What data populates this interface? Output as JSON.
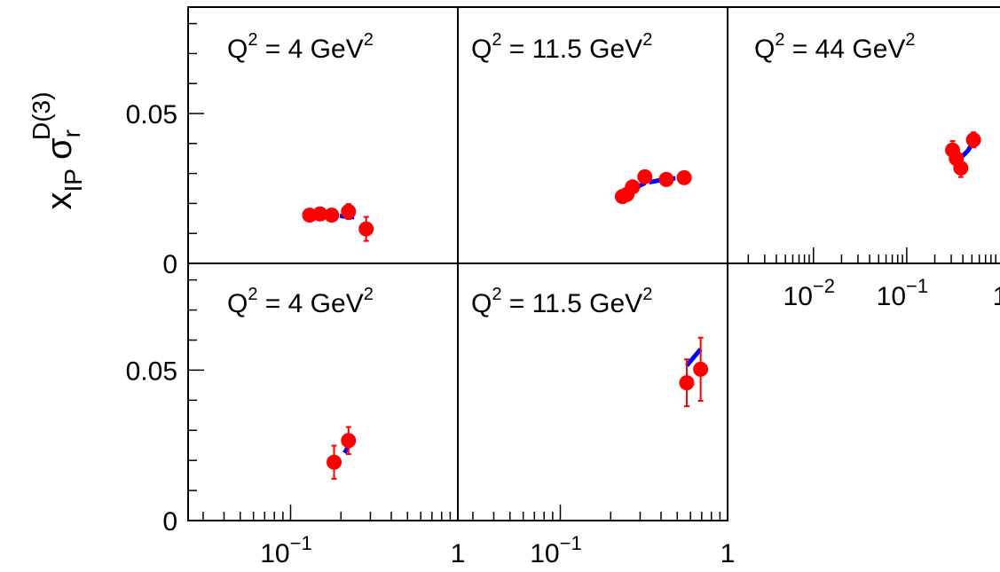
{
  "chart_data": {
    "type": "scatter",
    "ylabel": {
      "main": "x",
      "sub": "IP",
      "sym": "σ",
      "sub2": "r",
      "sup": "D(3)"
    },
    "ylim": [
      0,
      0.0855
    ],
    "y_ticks": [
      {
        "value": 0,
        "label": "0"
      },
      {
        "value": 0.05,
        "label": "0.05"
      }
    ],
    "x_scale": "log",
    "x_tick_labels": {
      "1e-2": {
        "base": "10",
        "exp": "−2"
      },
      "1e-1": {
        "base": "10",
        "exp": "−1"
      },
      "1": {
        "base": "1",
        "exp": ""
      }
    },
    "colors": {
      "points": "#ff0000",
      "curve": "#0000ff",
      "frame": "#000000"
    },
    "panels": [
      {
        "id": "p1",
        "q2": "4",
        "title_parts": [
          "Q",
          "2",
          " = 4 GeV",
          "2"
        ],
        "xlim": [
          0.0244,
          1
        ],
        "show_x_axis": false,
        "x_labels": [],
        "points": [
          {
            "x": 0.13,
            "y": 0.0161,
            "err": 0.0008
          },
          {
            "x": 0.15,
            "y": 0.0165,
            "err": 0.0008
          },
          {
            "x": 0.176,
            "y": 0.0161,
            "err": 0.001
          },
          {
            "x": 0.222,
            "y": 0.0173,
            "err": 0.0025
          },
          {
            "x": 0.283,
            "y": 0.0115,
            "err": 0.004
          }
        ],
        "curve": [
          [
            0.13,
            0.0163
          ],
          [
            0.176,
            0.0162
          ],
          [
            0.222,
            0.0155
          ],
          [
            0.24,
            0.0154
          ]
        ]
      },
      {
        "id": "p2",
        "q2": "11.5",
        "title_parts": [
          "Q",
          "2",
          " = 11.5 GeV",
          "2"
        ],
        "xlim": [
          0.0244,
          1
        ],
        "show_x_axis": false,
        "x_labels": [],
        "points": [
          {
            "x": 0.235,
            "y": 0.0223,
            "err": 0.001
          },
          {
            "x": 0.25,
            "y": 0.023,
            "err": 0.001
          },
          {
            "x": 0.27,
            "y": 0.0255,
            "err": 0.001
          },
          {
            "x": 0.32,
            "y": 0.0289,
            "err": 0.001
          },
          {
            "x": 0.43,
            "y": 0.028,
            "err": 0.001
          },
          {
            "x": 0.55,
            "y": 0.0286,
            "err": 0.001
          }
        ],
        "curve": [
          [
            0.235,
            0.0226
          ],
          [
            0.27,
            0.0247
          ],
          [
            0.32,
            0.0268
          ],
          [
            0.43,
            0.0281
          ],
          [
            0.55,
            0.0286
          ]
        ]
      },
      {
        "id": "p3",
        "q2": "44",
        "title_parts": [
          "Q",
          "2",
          " = 44 GeV",
          "2"
        ],
        "xlim": [
          0.0012,
          1
        ],
        "show_x_axis": true,
        "x_labels": [
          "1e-2",
          "1e-1",
          "1"
        ],
        "points": [
          {
            "x": 0.31,
            "y": 0.0378,
            "err": 0.003
          },
          {
            "x": 0.34,
            "y": 0.035,
            "err": 0.0025
          },
          {
            "x": 0.38,
            "y": 0.0318,
            "err": 0.003
          },
          {
            "x": 0.52,
            "y": 0.0412,
            "err": 0.0025
          }
        ],
        "curve": [
          [
            0.31,
            0.0372
          ],
          [
            0.38,
            0.0352
          ],
          [
            0.45,
            0.0375
          ],
          [
            0.52,
            0.0405
          ]
        ]
      },
      {
        "id": "p4",
        "q2": "4",
        "title_parts": [
          "Q",
          "2",
          " = 4 GeV",
          "2"
        ],
        "xlim": [
          0.0244,
          1
        ],
        "show_x_axis": true,
        "x_labels": [
          "1e-1",
          "1"
        ],
        "points": [
          {
            "x": 0.182,
            "y": 0.0194,
            "err": 0.0055
          },
          {
            "x": 0.222,
            "y": 0.0266,
            "err": 0.0045
          }
        ],
        "curve": [
          [
            0.21,
            0.0225
          ],
          [
            0.225,
            0.0252
          ]
        ]
      },
      {
        "id": "p5",
        "q2": "11.5",
        "title_parts": [
          "Q",
          "2",
          " = 11.5 GeV",
          "2"
        ],
        "xlim": [
          0.0244,
          1
        ],
        "show_x_axis": true,
        "x_labels": [
          "1e-1",
          "1"
        ],
        "points": [
          {
            "x": 0.57,
            "y": 0.0458,
            "err": 0.0078
          },
          {
            "x": 0.69,
            "y": 0.0503,
            "err": 0.0105
          }
        ],
        "curve": [
          [
            0.57,
            0.0515
          ],
          [
            0.69,
            0.057
          ]
        ]
      }
    ]
  }
}
